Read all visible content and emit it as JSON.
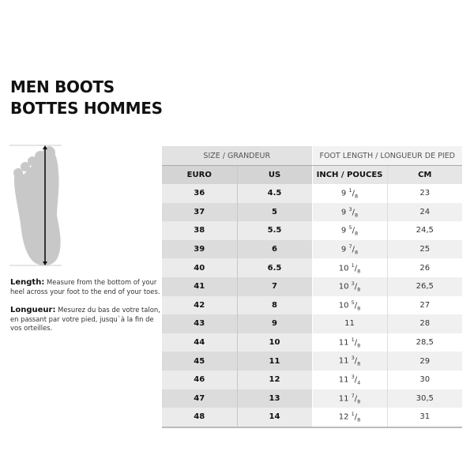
{
  "title": {
    "line1": "MEN BOOTS",
    "line2": "BOTTES HOMMES"
  },
  "length": {
    "label": "Length:",
    "text": "Measure from the bottom of your heel across your foot to the end of your toes."
  },
  "longueur": {
    "label": "Longueur:",
    "text": "Mesurez du bas de votre talon, en passant par votre pied, jusqu`à la fin de vos orteilles."
  },
  "table": {
    "group_size": "SIZE / GRANDEUR",
    "group_length": "FOOT LENGTH / LONGUEUR DE PIED",
    "headers": [
      "EURO",
      "US",
      "INCH / POUCES",
      "CM"
    ],
    "rows": [
      {
        "euro": "36",
        "us": "4.5",
        "inch_whole": "9",
        "inch_num": "1",
        "inch_den": "8",
        "cm": "23"
      },
      {
        "euro": "37",
        "us": "5",
        "inch_whole": "9",
        "inch_num": "3",
        "inch_den": "8",
        "cm": "24"
      },
      {
        "euro": "38",
        "us": "5.5",
        "inch_whole": "9",
        "inch_num": "5",
        "inch_den": "8",
        "cm": "24,5"
      },
      {
        "euro": "39",
        "us": "6",
        "inch_whole": "9",
        "inch_num": "7",
        "inch_den": "8",
        "cm": "25"
      },
      {
        "euro": "40",
        "us": "6.5",
        "inch_whole": "10",
        "inch_num": "1",
        "inch_den": "8",
        "cm": "26"
      },
      {
        "euro": "41",
        "us": "7",
        "inch_whole": "10",
        "inch_num": "3",
        "inch_den": "8",
        "cm": "26,5"
      },
      {
        "euro": "42",
        "us": "8",
        "inch_whole": "10",
        "inch_num": "5",
        "inch_den": "8",
        "cm": "27"
      },
      {
        "euro": "43",
        "us": "9",
        "inch_whole": "11",
        "inch_num": "",
        "inch_den": "",
        "cm": "28"
      },
      {
        "euro": "44",
        "us": "10",
        "inch_whole": "11",
        "inch_num": "1",
        "inch_den": "8",
        "cm": "28,5"
      },
      {
        "euro": "45",
        "us": "11",
        "inch_whole": "11",
        "inch_num": "3",
        "inch_den": "8",
        "cm": "29"
      },
      {
        "euro": "46",
        "us": "12",
        "inch_whole": "11",
        "inch_num": "3",
        "inch_den": "4",
        "cm": "30"
      },
      {
        "euro": "47",
        "us": "13",
        "inch_whole": "11",
        "inch_num": "7",
        "inch_den": "8",
        "cm": "30,5"
      },
      {
        "euro": "48",
        "us": "14",
        "inch_whole": "12",
        "inch_num": "1",
        "inch_den": "8",
        "cm": "31"
      }
    ]
  },
  "colors": {
    "foot": "#c8c8c8",
    "arrow": "#111111"
  }
}
